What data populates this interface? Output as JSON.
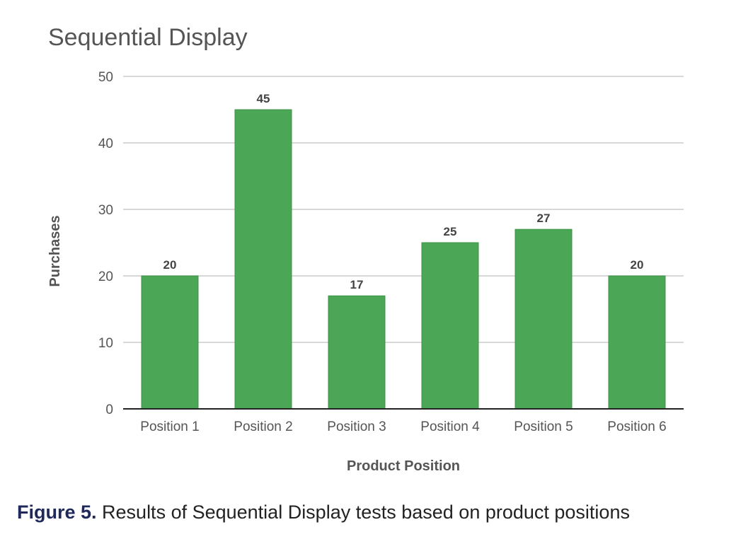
{
  "chart_data": {
    "type": "bar",
    "title": "Sequential Display",
    "xlabel": "Product Position",
    "ylabel": "Purchases",
    "categories": [
      "Position 1",
      "Position 2",
      "Position 3",
      "Position 4",
      "Position 5",
      "Position 6"
    ],
    "values": [
      20,
      45,
      17,
      25,
      27,
      20
    ],
    "ylim": [
      0,
      50
    ],
    "yticks": [
      0,
      10,
      20,
      30,
      40,
      50
    ],
    "grid": true,
    "bar_color": "#4ba655",
    "show_data_labels": true
  },
  "caption": {
    "figure_label": "Figure 5.",
    "text": " Results of Sequential Display tests based on product positions"
  }
}
